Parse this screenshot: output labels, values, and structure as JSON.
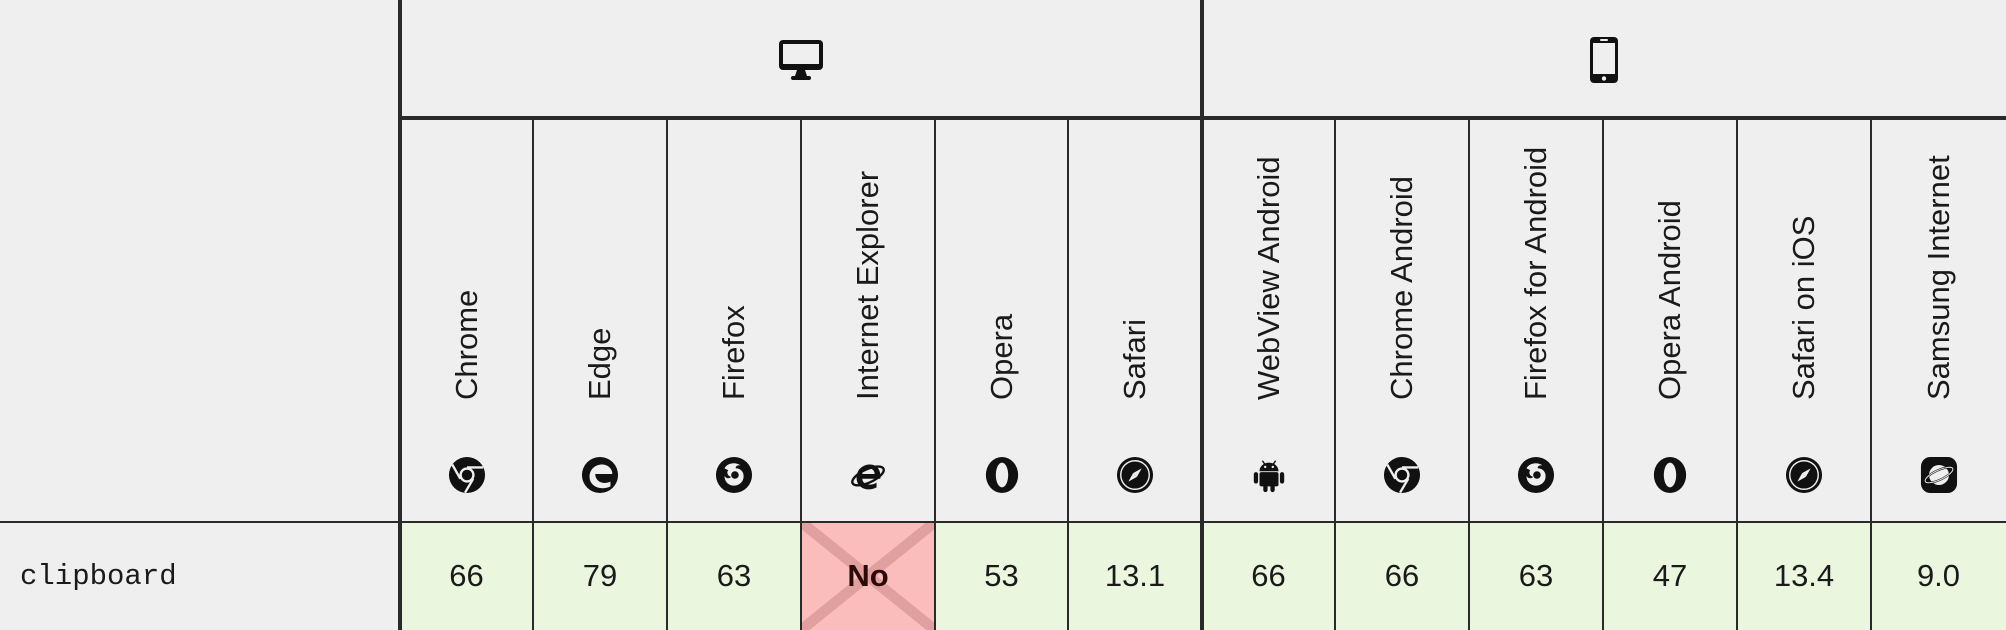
{
  "platforms": [
    {
      "name": "desktop",
      "icon": "desktop-icon"
    },
    {
      "name": "mobile",
      "icon": "mobile-phone-icon"
    }
  ],
  "browsers": [
    {
      "name": "Chrome",
      "icon": "chrome-icon"
    },
    {
      "name": "Edge",
      "icon": "edge-icon"
    },
    {
      "name": "Firefox",
      "icon": "firefox-icon"
    },
    {
      "name": "Internet Explorer",
      "icon": "internet-explorer-icon"
    },
    {
      "name": "Opera",
      "icon": "opera-icon"
    },
    {
      "name": "Safari",
      "icon": "safari-icon"
    },
    {
      "name": "WebView Android",
      "icon": "android-icon"
    },
    {
      "name": "Chrome Android",
      "icon": "chrome-icon"
    },
    {
      "name": "Firefox for Android",
      "icon": "firefox-icon"
    },
    {
      "name": "Opera Android",
      "icon": "opera-icon"
    },
    {
      "name": "Safari on iOS",
      "icon": "safari-icon"
    },
    {
      "name": "Samsung Internet",
      "icon": "samsung-internet-icon"
    }
  ],
  "feature": {
    "name": "clipboard",
    "support": [
      "66",
      "79",
      "63",
      "No",
      "53",
      "13.1",
      "66",
      "66",
      "63",
      "47",
      "13.4",
      "9.0"
    ]
  },
  "colors": {
    "supported": "#ebf6df",
    "unsupported": "#fbbcbc",
    "header": "#efefef",
    "border": "#2a2a2a"
  }
}
